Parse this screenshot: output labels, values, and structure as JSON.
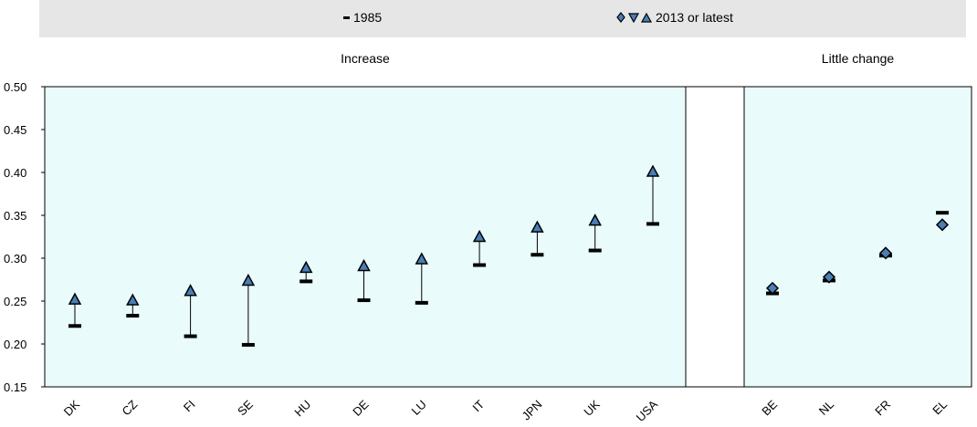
{
  "legend": {
    "label_1985": "1985",
    "label_2013": "2013 or latest"
  },
  "colors": {
    "panel_fill": "#e9fbfb",
    "marker_fill": "#4a7eb5",
    "legend_bg": "#e6e6e6"
  },
  "chart_data": {
    "type": "scatter",
    "groups": [
      {
        "label": "Increase",
        "categories": [
          "DK",
          "CZ",
          "FI",
          "SE",
          "HU",
          "DE",
          "LU",
          "IT",
          "JPN",
          "UK",
          "USA"
        ]
      },
      {
        "label": "Little change",
        "categories": [
          "BE",
          "NL",
          "FR",
          "EL"
        ]
      }
    ],
    "ylim": [
      0.15,
      0.5
    ],
    "yticks": [
      "0.15",
      "0.20",
      "0.25",
      "0.30",
      "0.35",
      "0.40",
      "0.45",
      "0.50"
    ],
    "series": [
      {
        "name": "1985",
        "marker": "dash",
        "values": {
          "DK": 0.221,
          "CZ": 0.233,
          "FI": 0.209,
          "SE": 0.199,
          "HU": 0.273,
          "DE": 0.251,
          "LU": 0.248,
          "IT": 0.292,
          "JPN": 0.304,
          "UK": 0.309,
          "USA": 0.34,
          "BE": 0.259,
          "NL": 0.274,
          "FR": 0.303,
          "EL": 0.353
        }
      },
      {
        "name": "2013 or latest",
        "marker_increase": "triangle-up",
        "marker_little_change": "diamond",
        "values": {
          "DK": 0.252,
          "CZ": 0.251,
          "FI": 0.262,
          "SE": 0.274,
          "HU": 0.289,
          "DE": 0.291,
          "LU": 0.299,
          "IT": 0.325,
          "JPN": 0.336,
          "UK": 0.344,
          "USA": 0.401,
          "BE": 0.265,
          "NL": 0.278,
          "FR": 0.306,
          "EL": 0.339
        }
      }
    ]
  }
}
